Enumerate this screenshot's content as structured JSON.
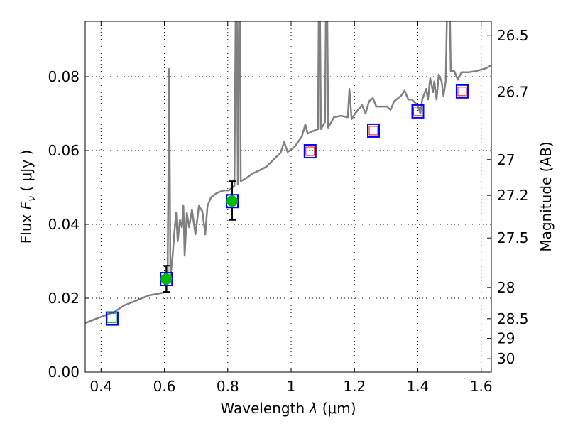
{
  "chart_data": {
    "type": "line",
    "title": "",
    "xlabel": "Wavelength  λ (μm)",
    "xlabel_parts": {
      "text": "Wavelength",
      "symbol": "λ",
      "unit": "(μm)"
    },
    "ylabel_parts": {
      "text": "Flux",
      "symbol": "F",
      "sub": "ν",
      "unit": "( μJy )"
    },
    "ylabel": "Flux  Fν  ( μJy )",
    "y2label": "Magnitude (AB)",
    "xlim": [
      0.35,
      1.632
    ],
    "ylim": [
      0,
      0.095
    ],
    "grid": true,
    "xticks": [
      {
        "v": 0.4,
        "label": "0.4"
      },
      {
        "v": 0.6,
        "label": "0.6"
      },
      {
        "v": 0.8,
        "label": "0.8"
      },
      {
        "v": 1.0,
        "label": "1"
      },
      {
        "v": 1.2,
        "label": "1.2"
      },
      {
        "v": 1.4,
        "label": "1.4"
      },
      {
        "v": 1.6,
        "label": "1.6"
      }
    ],
    "yticks": [
      {
        "v": 0,
        "label": "0.00"
      },
      {
        "v": 0.02,
        "label": "0.02"
      },
      {
        "v": 0.04,
        "label": "0.04"
      },
      {
        "v": 0.06,
        "label": "0.06"
      },
      {
        "v": 0.08,
        "label": "0.08"
      }
    ],
    "y2ticks": [
      {
        "mag": 26.5,
        "label": "26.5"
      },
      {
        "mag": 26.7,
        "label": "26.7"
      },
      {
        "mag": 27,
        "label": "27"
      },
      {
        "mag": 27.2,
        "label": "27.2"
      },
      {
        "mag": 27.5,
        "label": "27.5"
      },
      {
        "mag": 28,
        "label": "28"
      },
      {
        "mag": 28.5,
        "label": "28.5"
      },
      {
        "mag": 29,
        "label": "29"
      },
      {
        "mag": 30,
        "label": "30"
      }
    ],
    "colors": {
      "spectrum": "#808080",
      "model_box": "#0000ff",
      "observed": "#00bb00",
      "upper_box": "#ff0000",
      "errorbar": "#000000"
    },
    "spectrum": {
      "name": "model spectrum",
      "x": [
        0.351,
        0.395,
        0.44,
        0.474,
        0.507,
        0.552,
        0.585,
        0.606,
        0.61,
        0.615,
        0.619,
        0.626,
        0.631,
        0.637,
        0.642,
        0.649,
        0.655,
        0.66,
        0.664,
        0.671,
        0.678,
        0.687,
        0.698,
        0.709,
        0.72,
        0.729,
        0.736,
        0.747,
        0.765,
        0.787,
        0.803,
        0.821,
        0.827,
        0.832,
        0.837,
        0.841,
        0.855,
        0.877,
        0.899,
        0.922,
        0.944,
        0.967,
        0.978,
        0.989,
        1.011,
        1.034,
        1.045,
        1.052,
        1.067,
        1.085,
        1.089,
        1.094,
        1.107,
        1.112,
        1.117,
        1.135,
        1.157,
        1.179,
        1.184,
        1.191,
        1.202,
        1.224,
        1.235,
        1.246,
        1.258,
        1.269,
        1.303,
        1.314,
        1.325,
        1.347,
        1.358,
        1.37,
        1.381,
        1.399,
        1.408,
        1.414,
        1.426,
        1.432,
        1.439,
        1.448,
        1.452,
        1.459,
        1.466,
        1.475,
        1.481,
        1.488,
        1.497,
        1.504,
        1.515,
        1.526,
        1.538,
        1.56,
        1.583,
        1.616,
        1.632
      ],
      "y": [
        0.0133,
        0.0148,
        0.0162,
        0.0181,
        0.0192,
        0.0208,
        0.0213,
        0.0217,
        0.0238,
        0.0821,
        0.0258,
        0.0315,
        0.0373,
        0.0431,
        0.0354,
        0.0412,
        0.0392,
        0.045,
        0.0315,
        0.0431,
        0.0392,
        0.044,
        0.0373,
        0.045,
        0.0435,
        0.0373,
        0.045,
        0.0473,
        0.0485,
        0.0492,
        0.0492,
        0.0504,
        0.12,
        0.0508,
        0.12,
        0.0517,
        0.0523,
        0.0537,
        0.0546,
        0.0556,
        0.0575,
        0.0594,
        0.0623,
        0.0596,
        0.061,
        0.0638,
        0.0671,
        0.0646,
        0.0652,
        0.0658,
        0.12,
        0.0658,
        0.0677,
        0.12,
        0.0662,
        0.069,
        0.0694,
        0.069,
        0.0767,
        0.0685,
        0.07,
        0.0723,
        0.07,
        0.0733,
        0.0742,
        0.0719,
        0.0719,
        0.071,
        0.0733,
        0.0748,
        0.0762,
        0.0738,
        0.0738,
        0.0723,
        0.07,
        0.0738,
        0.0767,
        0.0738,
        0.0796,
        0.0758,
        0.0787,
        0.0738,
        0.0806,
        0.0787,
        0.0748,
        0.0787,
        0.12,
        0.0815,
        0.0815,
        0.0792,
        0.0812,
        0.0812,
        0.0815,
        0.0823,
        0.0831
      ]
    },
    "model_photometry": {
      "name": "model bands",
      "x": [
        0.435,
        0.606,
        0.814,
        1.06,
        1.26,
        1.4,
        1.54
      ],
      "y": [
        0.0145,
        0.0252,
        0.0463,
        0.0598,
        0.0654,
        0.0706,
        0.076
      ]
    },
    "observed": {
      "name": "detections",
      "x": [
        0.606,
        0.814
      ],
      "y": [
        0.0252,
        0.0463
      ],
      "yerr_low": [
        0.0217,
        0.0412
      ],
      "yerr_high": [
        0.0288,
        0.0517
      ]
    },
    "open_green": {
      "name": "non-detection",
      "x": [
        0.435
      ],
      "y": [
        0.0145
      ]
    },
    "red_boxes": {
      "name": "predicted",
      "x": [
        1.06,
        1.26,
        1.4,
        1.54
      ],
      "y": [
        0.0598,
        0.0654,
        0.0706,
        0.076
      ]
    }
  }
}
